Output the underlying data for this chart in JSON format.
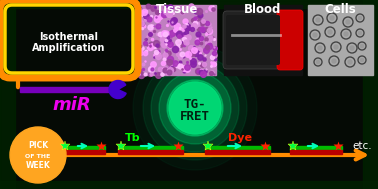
{
  "bg_color": "#050A05",
  "title_tissue": "Tissue",
  "title_blood": "Blood",
  "title_cells": "Cells",
  "tg_fret_line1": "TG-",
  "tg_fret_line2": "FRET",
  "mir_text": "miR",
  "isothermal_line1": "Isothermal",
  "isothermal_line2": "Amplification",
  "pick_line1": "PICK",
  "pick_line2": "OF THE",
  "pick_line3": "WEEK",
  "tb_text": "Tb",
  "dye_text": "Dye",
  "etc_text": "etc.",
  "orange_color": "#FF8C00",
  "yellow_color": "#FFD700",
  "green_glow": "#00FF88",
  "magenta_color": "#EE00EE",
  "pick_color": "#FFA520",
  "green_star": "#00FF44",
  "red_star": "#FF2200",
  "cyan_arrow": "#00FFBB",
  "green_bar": "#00BB00",
  "red_bar": "#BB0000",
  "tb_color": "#00FF00",
  "dye_color": "#FF2200",
  "white": "#FFFFFF",
  "dark_green_edge": "#003300"
}
